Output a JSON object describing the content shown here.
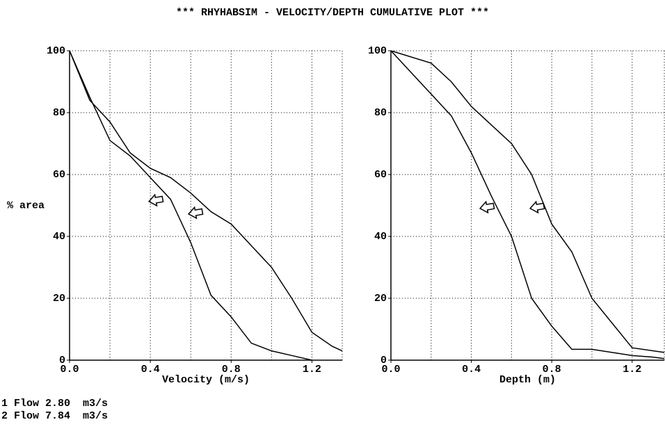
{
  "title": "*** RHYHABSIM - VELOCITY/DEPTH CUMULATIVE PLOT ***",
  "chart_data": [
    {
      "type": "line",
      "xlabel": "Velocity (m/s)",
      "ylabel": "% area",
      "xlim": [
        0,
        1.35
      ],
      "ylim": [
        0,
        100
      ],
      "xticks": [
        {
          "value": 0,
          "label": "0.0"
        },
        0.4,
        0.8,
        1.2
      ],
      "xgrid": [
        0.2,
        0.4,
        0.6,
        0.8,
        1.0,
        1.2
      ],
      "yticks": [
        0,
        20,
        40,
        60,
        80,
        100
      ],
      "ygrid": [
        20,
        40,
        60,
        80,
        100
      ],
      "grid": true,
      "series": [
        {
          "name": "1 Flow 2.80  m3/s",
          "color": "#000000",
          "x": [
            0,
            0.1,
            0.2,
            0.3,
            0.4,
            0.5,
            0.6,
            0.7,
            0.8,
            0.9,
            1.0,
            1.1,
            1.2
          ],
          "values": [
            100,
            85,
            71,
            66,
            59,
            52,
            38,
            21,
            14,
            5.5,
            3,
            1.5,
            0
          ]
        },
        {
          "name": "2 Flow 7.84  m3/s",
          "color": "#000000",
          "x": [
            0,
            0.1,
            0.2,
            0.3,
            0.4,
            0.5,
            0.6,
            0.7,
            0.8,
            0.9,
            1.0,
            1.1,
            1.2,
            1.3,
            1.35
          ],
          "values": [
            100,
            84,
            77,
            67,
            62,
            59,
            54,
            48,
            44,
            37,
            30,
            20,
            9,
            4.5,
            3
          ]
        }
      ]
    },
    {
      "type": "line",
      "xlabel": "Depth (m)",
      "xlim": [
        0,
        1.36
      ],
      "ylim": [
        0,
        100
      ],
      "xticks": [
        {
          "value": 0,
          "label": "0.0"
        },
        0.4,
        0.8,
        1.2
      ],
      "xgrid": [
        0.2,
        0.4,
        0.6,
        0.8,
        1.0,
        1.2
      ],
      "yticks": [
        0,
        20,
        40,
        60,
        80,
        100
      ],
      "ygrid": [
        20,
        40,
        60,
        80,
        100
      ],
      "grid": true,
      "series": [
        {
          "color": "#000000",
          "x": [
            0,
            0.1,
            0.2,
            0.3,
            0.4,
            0.5,
            0.6,
            0.7,
            0.8,
            0.9,
            1.0,
            1.1,
            1.2,
            1.3,
            1.36
          ],
          "values": [
            100,
            93,
            86,
            79,
            67,
            53,
            40,
            20,
            11,
            3.5,
            3.5,
            2.5,
            1.5,
            1,
            0.5
          ]
        },
        {
          "color": "#000000",
          "x": [
            0,
            0.2,
            0.3,
            0.4,
            0.5,
            0.6,
            0.7,
            0.8,
            0.9,
            1.0,
            1.1,
            1.2,
            1.36
          ],
          "values": [
            100,
            96,
            90,
            82,
            76,
            70,
            60,
            44,
            35,
            20,
            12,
            4,
            2.5
          ]
        }
      ]
    }
  ]
}
